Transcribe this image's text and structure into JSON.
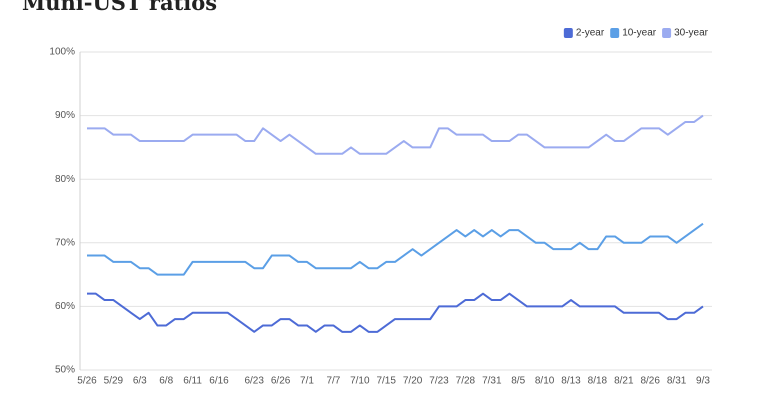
{
  "chart_data": {
    "type": "line",
    "title": "Muni-UST ratios",
    "categories": [
      "5/26",
      null,
      null,
      "5/29",
      null,
      null,
      "6/3",
      null,
      null,
      "6/8",
      null,
      null,
      "6/11",
      null,
      null,
      "6/16",
      null,
      null,
      null,
      "6/23",
      null,
      null,
      "6/26",
      null,
      null,
      "7/1",
      null,
      null,
      "7/7",
      null,
      null,
      "7/10",
      null,
      null,
      "7/15",
      null,
      null,
      "7/20",
      null,
      null,
      "7/23",
      null,
      null,
      "7/28",
      null,
      null,
      "7/31",
      null,
      null,
      "8/5",
      null,
      null,
      "8/10",
      null,
      null,
      "8/13",
      null,
      null,
      "8/18",
      null,
      null,
      "8/21",
      null,
      null,
      "8/26",
      null,
      null,
      "8/31",
      null,
      null,
      "9/3"
    ],
    "series": [
      {
        "name": "2-year",
        "color": "#4d6bd6",
        "values": [
          62,
          62,
          61,
          61,
          60,
          59,
          58,
          59,
          57,
          57,
          58,
          58,
          59,
          59,
          59,
          59,
          59,
          58,
          57,
          56,
          57,
          57,
          58,
          58,
          57,
          57,
          56,
          57,
          57,
          56,
          56,
          57,
          56,
          56,
          57,
          58,
          58,
          58,
          58,
          58,
          60,
          60,
          60,
          61,
          61,
          62,
          61,
          61,
          62,
          61,
          60,
          60,
          60,
          60,
          60,
          61,
          60,
          60,
          60,
          60,
          60,
          59,
          59,
          59,
          59,
          59,
          58,
          58,
          59,
          59,
          60
        ]
      },
      {
        "name": "10-year",
        "color": "#5b9fe6",
        "values": [
          68,
          68,
          68,
          67,
          67,
          67,
          66,
          66,
          65,
          65,
          65,
          65,
          67,
          67,
          67,
          67,
          67,
          67,
          67,
          66,
          66,
          68,
          68,
          68,
          67,
          67,
          66,
          66,
          66,
          66,
          66,
          67,
          66,
          66,
          67,
          67,
          68,
          69,
          68,
          69,
          70,
          71,
          72,
          71,
          72,
          71,
          72,
          71,
          72,
          72,
          71,
          70,
          70,
          69,
          69,
          69,
          70,
          69,
          69,
          71,
          71,
          70,
          70,
          70,
          71,
          71,
          71,
          70,
          71,
          72,
          73
        ]
      },
      {
        "name": "30-year",
        "color": "#9babf0",
        "values": [
          88,
          88,
          88,
          87,
          87,
          87,
          86,
          86,
          86,
          86,
          86,
          86,
          87,
          87,
          87,
          87,
          87,
          87,
          86,
          86,
          88,
          87,
          86,
          87,
          86,
          85,
          84,
          84,
          84,
          84,
          85,
          84,
          84,
          84,
          84,
          85,
          86,
          85,
          85,
          85,
          88,
          88,
          87,
          87,
          87,
          87,
          86,
          86,
          86,
          87,
          87,
          86,
          85,
          85,
          85,
          85,
          85,
          85,
          86,
          87,
          86,
          86,
          87,
          88,
          88,
          88,
          87,
          88,
          89,
          89,
          90
        ]
      }
    ],
    "ylim": [
      50,
      100
    ],
    "yticks": [
      {
        "value": 50,
        "label": "50%"
      },
      {
        "value": 60,
        "label": "60%"
      },
      {
        "value": 70,
        "label": "70%"
      },
      {
        "value": 80,
        "label": "80%"
      },
      {
        "value": 90,
        "label": "90%"
      },
      {
        "value": 100,
        "label": "100%"
      }
    ],
    "grid": true,
    "legend": "top-right"
  }
}
